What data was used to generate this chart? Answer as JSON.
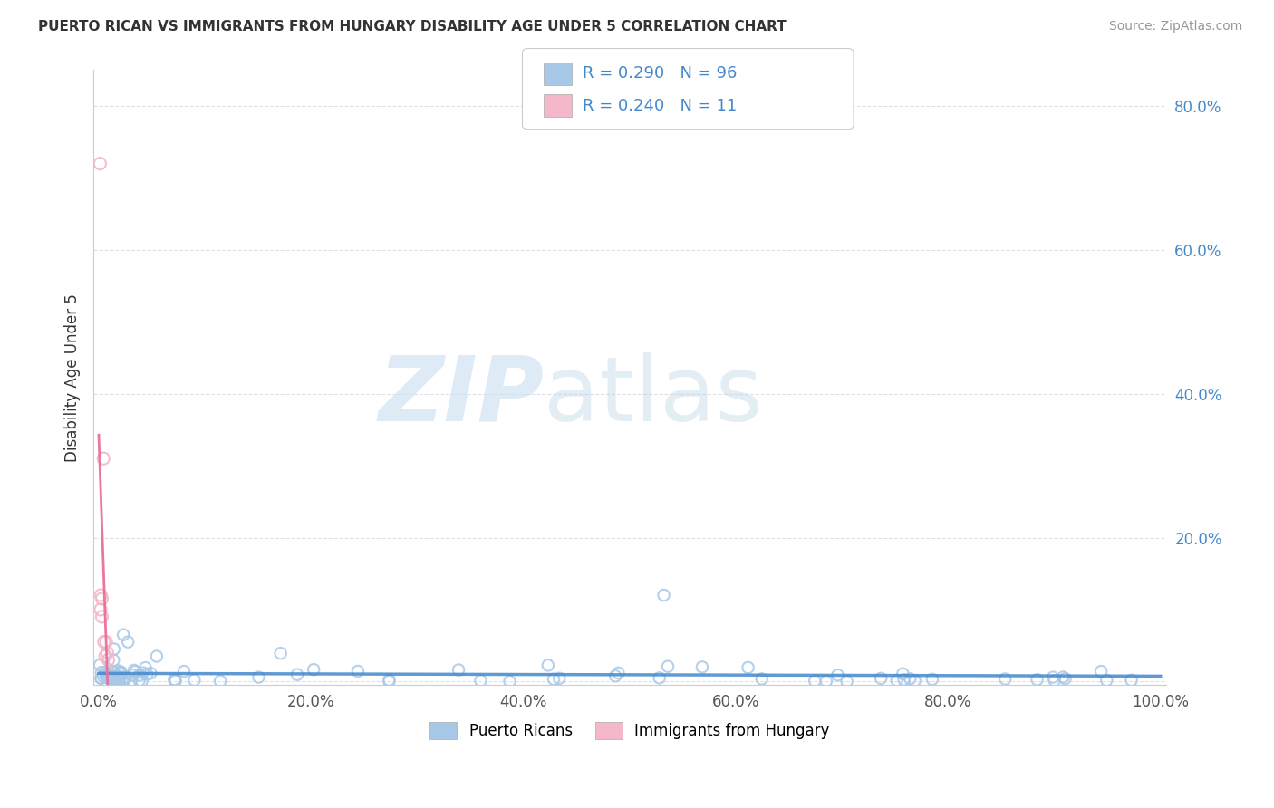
{
  "title": "PUERTO RICAN VS IMMIGRANTS FROM HUNGARY DISABILITY AGE UNDER 5 CORRELATION CHART",
  "source": "Source: ZipAtlas.com",
  "ylabel": "Disability Age Under 5",
  "xlabel": "",
  "xlim": [
    -0.005,
    1.005
  ],
  "ylim": [
    -0.005,
    0.85
  ],
  "xticks": [
    0.0,
    0.2,
    0.4,
    0.6,
    0.8,
    1.0
  ],
  "xticklabels": [
    "0.0%",
    "20.0%",
    "40.0%",
    "60.0%",
    "80.0%",
    "100.0%"
  ],
  "yticks": [
    0.0,
    0.2,
    0.4,
    0.6,
    0.8
  ],
  "yticklabels": [
    "",
    "20.0%",
    "40.0%",
    "60.0%",
    "80.0%"
  ],
  "blue_color": "#a8c8e8",
  "pink_color": "#f4b8c8",
  "blue_line_color": "#4488cc",
  "pink_line_color": "#e8709a",
  "legend_label_blue": "Puerto Ricans",
  "legend_label_pink": "Immigrants from Hungary",
  "R_blue": 0.29,
  "N_blue": 96,
  "R_pink": 0.24,
  "N_pink": 11,
  "background_color": "#ffffff",
  "grid_color": "#e0e0e8",
  "title_color": "#333333",
  "source_color": "#999999",
  "tick_color": "#4488cc",
  "ylabel_color": "#333333"
}
